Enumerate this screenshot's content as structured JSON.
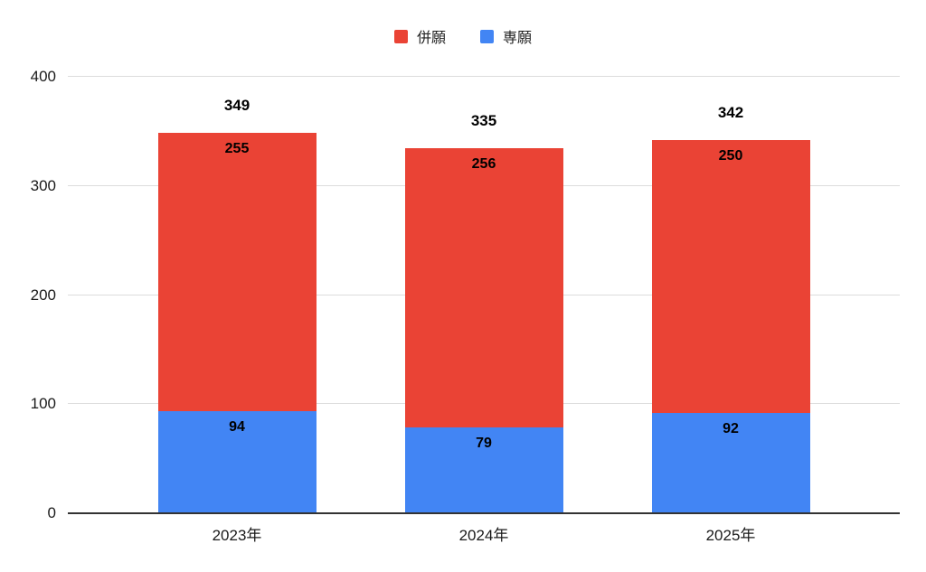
{
  "legend": {
    "items": [
      {
        "label": "併願",
        "color": "#EA4335"
      },
      {
        "label": "専願",
        "color": "#4285F4"
      }
    ]
  },
  "chart_data": {
    "type": "bar",
    "stacked": true,
    "title": "",
    "categories": [
      "2023年",
      "2024年",
      "2025年"
    ],
    "series": [
      {
        "name": "専願",
        "color": "#4285F4",
        "values": [
          94,
          79,
          92
        ]
      },
      {
        "name": "併願",
        "color": "#EA4335",
        "values": [
          255,
          256,
          250
        ]
      }
    ],
    "totals": [
      349,
      335,
      342
    ],
    "xlabel": "",
    "ylabel": "",
    "ylim": [
      0,
      400
    ],
    "yticks": [
      0,
      100,
      200,
      300,
      400
    ],
    "legend_position": "top",
    "grid": true,
    "colors": {
      "grid": "#dddddd",
      "axis": "#333333",
      "label_text": "#000000",
      "tick_text": "#1a1a1a"
    }
  }
}
